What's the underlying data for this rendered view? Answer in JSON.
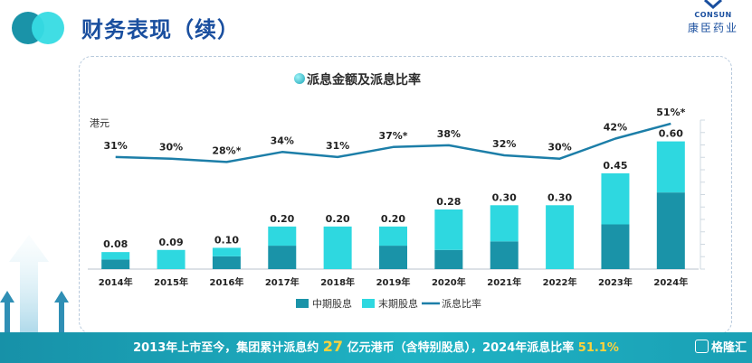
{
  "header": {
    "title": "财务表现（续）",
    "logo_en": "CONSUN",
    "logo_cn": "康臣药业"
  },
  "footer": {
    "text_1": "2013年上市至今，集团累计派息约 ",
    "highlight_1": "27",
    "text_2": " 亿元港币（含特别股息），2024年派息比率 ",
    "highlight_2": "51.1",
    "text_3": "%",
    "watermark": "格隆汇"
  },
  "colors": {
    "interim": "#1a93a8",
    "final": "#2ed8e0",
    "payout_line": "#1c7ea8",
    "title": "#1a4f9f",
    "footer_band": "#1aa5b9",
    "footer_highlight": "#ffd23c"
  },
  "chart_data": {
    "type": "bar",
    "title": "派息金额及派息比率",
    "ylabel": "港元",
    "categories": [
      "2014年",
      "2015年",
      "2016年",
      "2017年",
      "2018年",
      "2019年",
      "2020年",
      "2021年",
      "2022年",
      "2023年",
      "2024年"
    ],
    "ylim": [
      0,
      0.7
    ],
    "stacked": true,
    "series": [
      {
        "name": "中期股息",
        "values": [
          0.045,
          0.0,
          0.06,
          0.11,
          0.0,
          0.11,
          0.09,
          0.13,
          0.0,
          0.21,
          0.36
        ]
      },
      {
        "name": "末期股息",
        "values": [
          0.035,
          0.09,
          0.04,
          0.09,
          0.2,
          0.09,
          0.19,
          0.17,
          0.3,
          0.24,
          0.24
        ]
      }
    ],
    "total_labels": [
      "0.08",
      "0.09",
      "0.10",
      "0.20",
      "0.20",
      "0.20",
      "0.28",
      "0.30",
      "0.30",
      "0.45",
      "0.60"
    ],
    "line_series": {
      "name": "派息比率",
      "values": [
        31,
        30,
        28,
        34,
        31,
        37,
        38,
        32,
        30,
        42,
        51
      ],
      "labels": [
        "31%",
        "30%",
        "28%*",
        "34%",
        "31%",
        "37%*",
        "38%",
        "32%",
        "30%",
        "42%",
        "51%*"
      ]
    },
    "legend_position": "bottom"
  }
}
